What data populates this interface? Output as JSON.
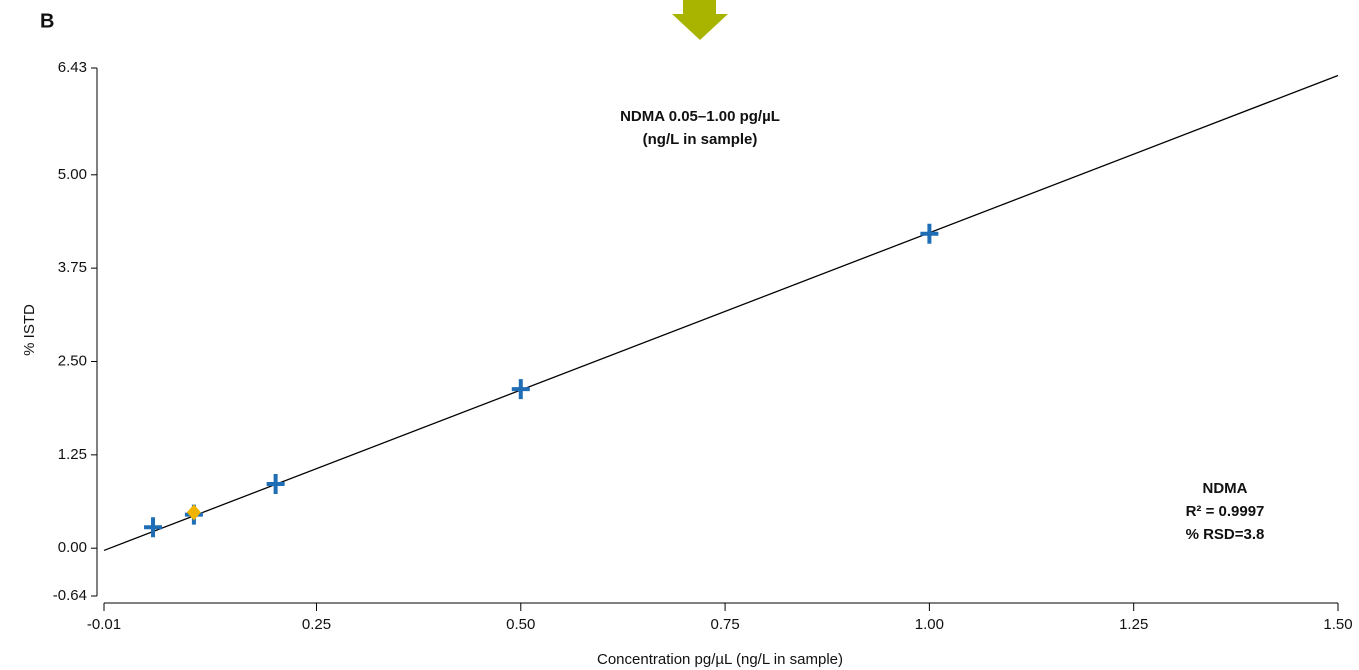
{
  "chart_data": {
    "type": "scatter",
    "panel_label": "B",
    "title": "NDMA 0.05–1.00 pg/µL",
    "subtitle": "(ng/L in sample)",
    "xlabel": "Concentration pg/µL (ng/L in sample)",
    "ylabel": "% ISTD",
    "annotations": [
      "NDMA",
      "R² = 0.9997",
      "% RSD=3.8"
    ],
    "xlim": [
      -0.01,
      1.5
    ],
    "xticks": [
      -0.01,
      0.25,
      {
        "value": 0.5,
        "label": "0.50"
      },
      0.75,
      {
        "value": 1,
        "label": "1.00"
      },
      1.25,
      {
        "value": 1.5,
        "label": "1.50"
      }
    ],
    "ylim": [
      -0.64,
      6.43
    ],
    "yticks": [
      -0.64,
      {
        "value": 0,
        "label": "0.00"
      },
      1.25,
      {
        "value": 2.5,
        "label": "2.50"
      },
      3.75,
      {
        "value": 5,
        "label": "5.00"
      },
      6.43
    ],
    "fit_line": {
      "color": "#000000",
      "x": [
        -0.01,
        1.5
      ],
      "values": [
        -0.03,
        6.33
      ]
    },
    "series": [
      {
        "color": "#1f6db5",
        "marker": "plus",
        "x": [
          0.05,
          0.1,
          0.2,
          0.5,
          1.0
        ],
        "values": [
          0.28,
          0.45,
          0.86,
          2.13,
          4.21
        ]
      },
      {
        "color": "#f0b400",
        "marker": "diamond",
        "x": [
          0.1
        ],
        "values": [
          0.48
        ]
      }
    ]
  }
}
